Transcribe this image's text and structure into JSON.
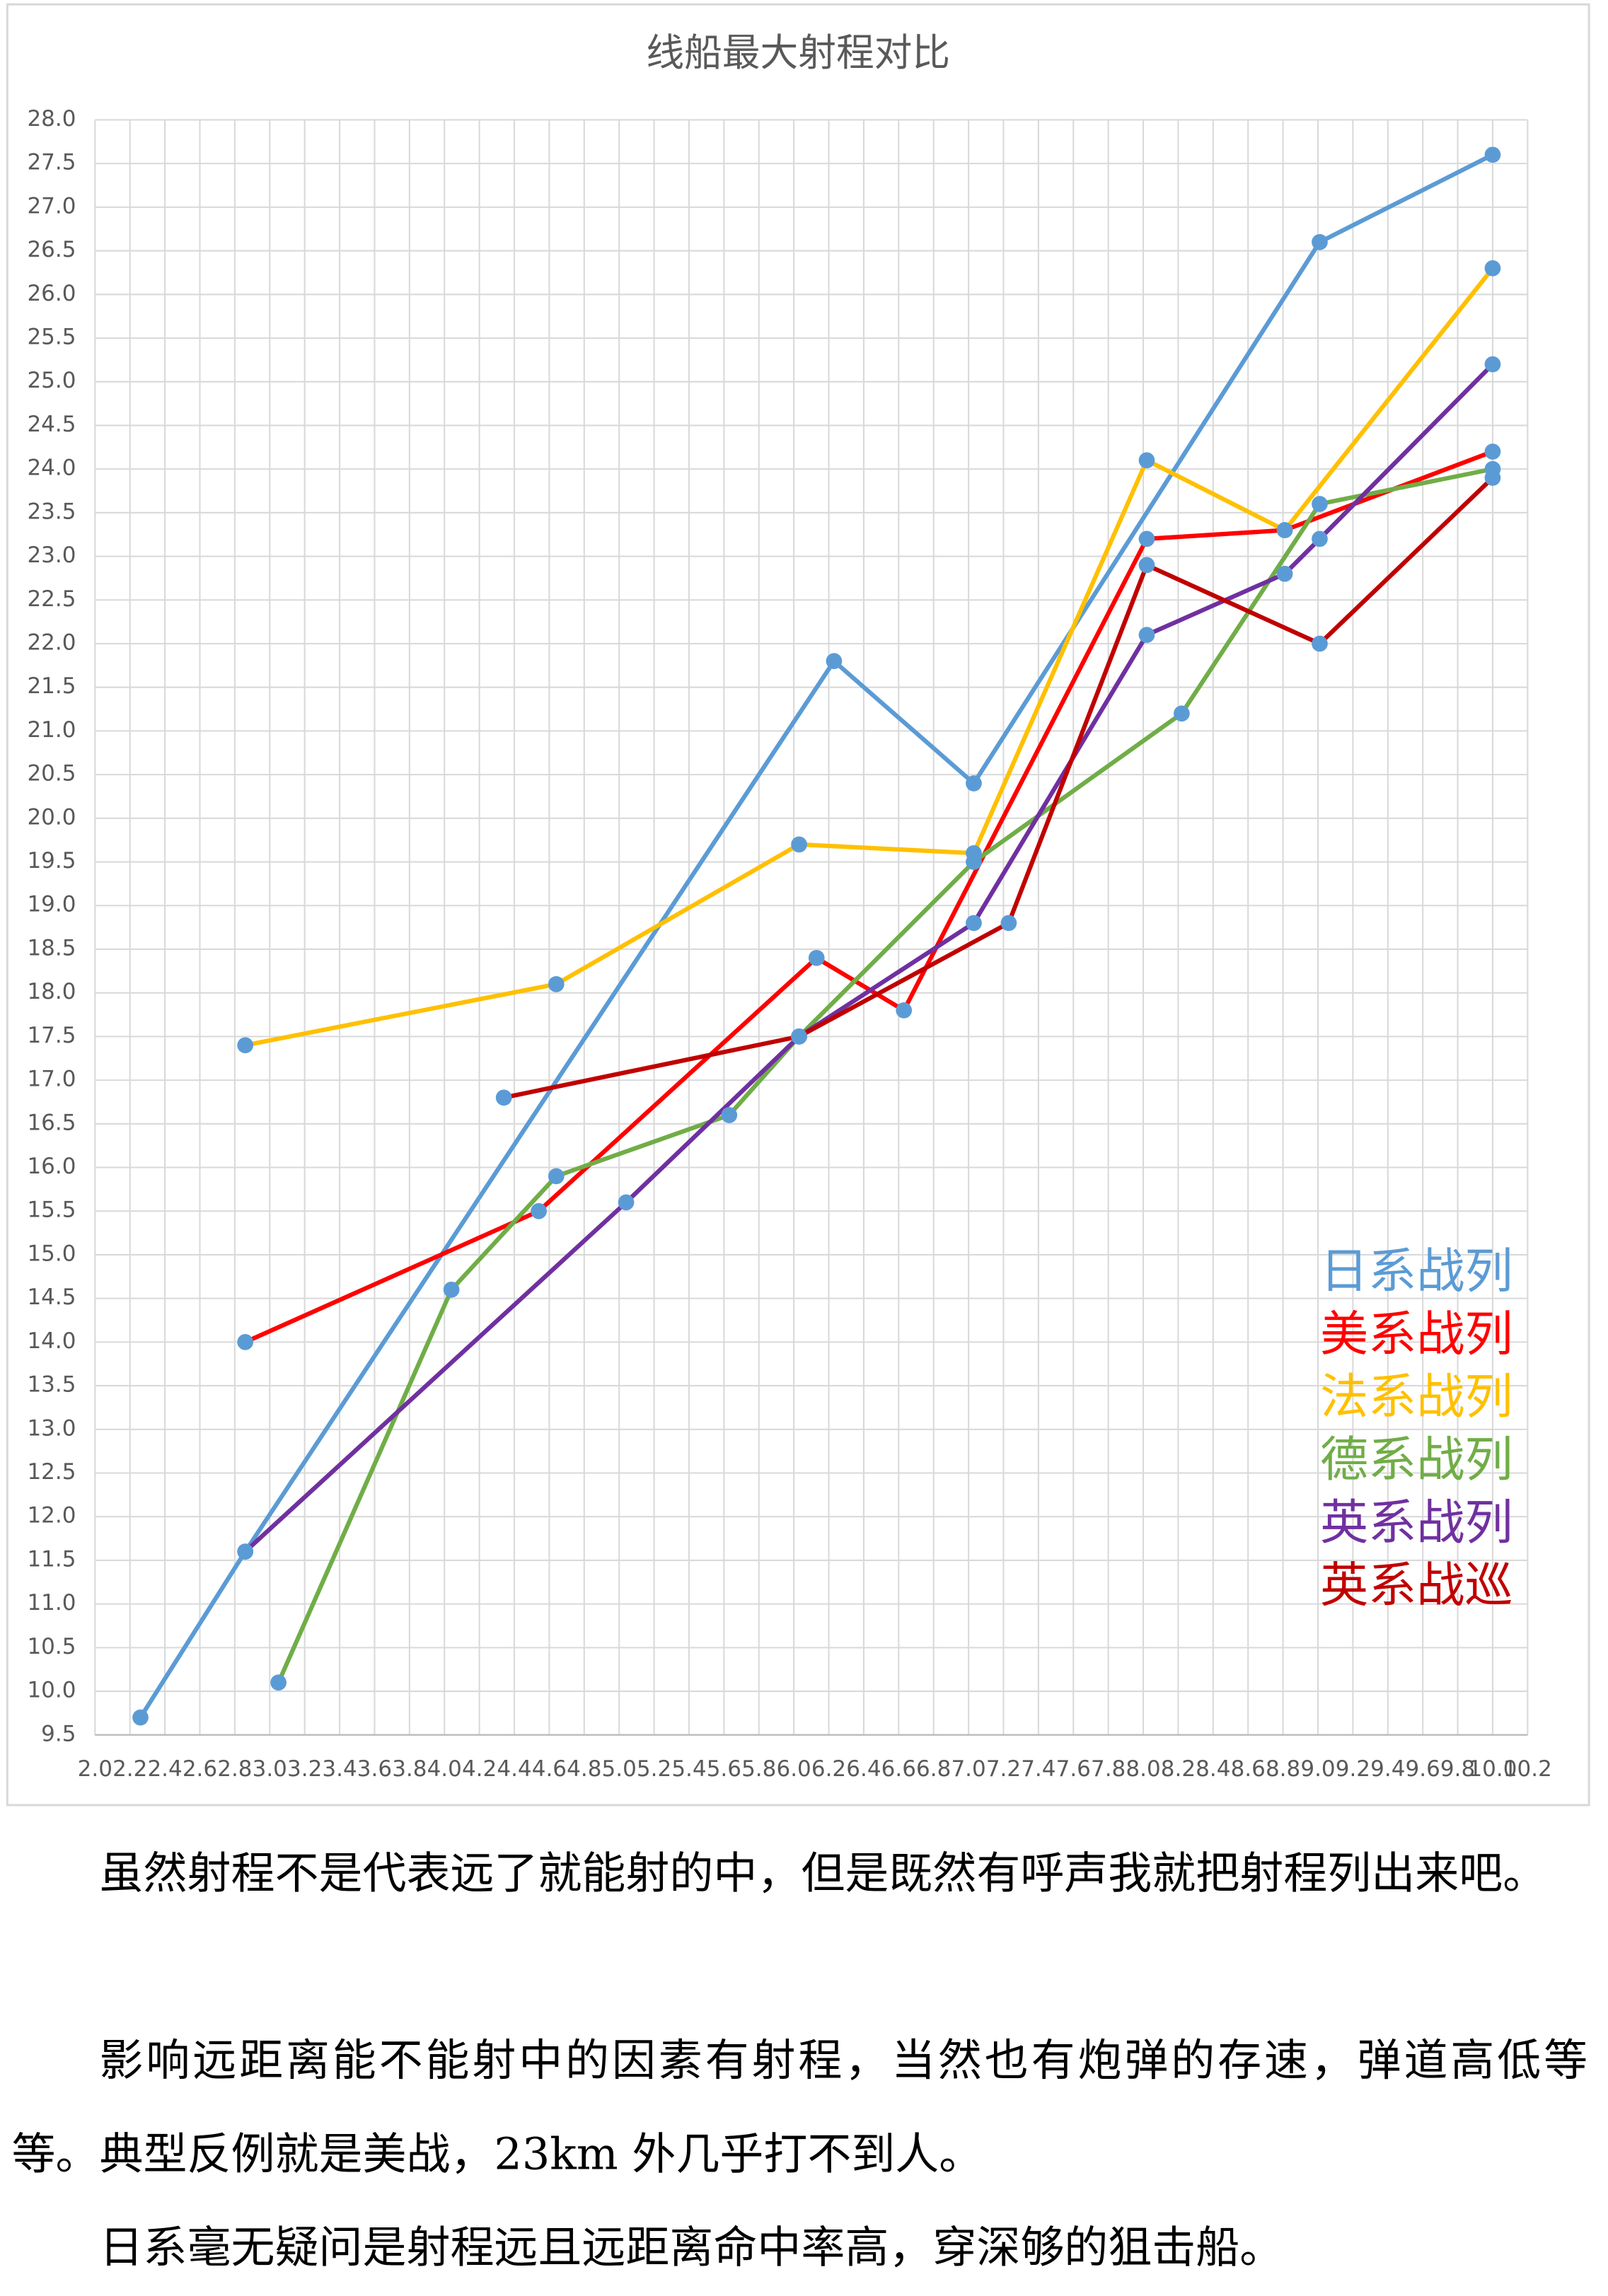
{
  "chart_data": {
    "type": "line",
    "title": "线船最大射程对比",
    "xlim": [
      2,
      10.2
    ],
    "ylim": [
      9.5,
      28
    ],
    "xticks": [
      {
        "value": 2,
        "label": "2.0"
      },
      2.2,
      2.4,
      2.6,
      2.8,
      {
        "value": 3,
        "label": "3.0"
      },
      3.2,
      3.4,
      3.6,
      3.8,
      {
        "value": 4,
        "label": "4.0"
      },
      4.2,
      4.4,
      4.6,
      4.8,
      {
        "value": 5,
        "label": "5.0"
      },
      5.2,
      5.4,
      5.6,
      5.8,
      {
        "value": 6,
        "label": "6.0"
      },
      6.2,
      6.4,
      6.6,
      6.8,
      {
        "value": 7,
        "label": "7.0"
      },
      7.2,
      7.4,
      7.6,
      7.8,
      {
        "value": 8,
        "label": "8.0"
      },
      8.2,
      8.4,
      8.6,
      8.8,
      {
        "value": 9,
        "label": "9.0"
      },
      9.2,
      9.4,
      9.6,
      9.8,
      {
        "value": 10,
        "label": "10.0"
      },
      10.2
    ],
    "yticks": [
      9.5,
      {
        "value": 10,
        "label": "10.0"
      },
      10.5,
      {
        "value": 11,
        "label": "11.0"
      },
      11.5,
      {
        "value": 12,
        "label": "12.0"
      },
      12.5,
      {
        "value": 13,
        "label": "13.0"
      },
      13.5,
      {
        "value": 14,
        "label": "14.0"
      },
      14.5,
      {
        "value": 15,
        "label": "15.0"
      },
      15.5,
      {
        "value": 16,
        "label": "16.0"
      },
      16.5,
      {
        "value": 17,
        "label": "17.0"
      },
      17.5,
      {
        "value": 18,
        "label": "18.0"
      },
      18.5,
      {
        "value": 19,
        "label": "19.0"
      },
      19.5,
      {
        "value": 20,
        "label": "20.0"
      },
      20.5,
      {
        "value": 21,
        "label": "21.0"
      },
      21.5,
      {
        "value": 22,
        "label": "22.0"
      },
      22.5,
      {
        "value": 23,
        "label": "23.0"
      },
      23.5,
      {
        "value": 24,
        "label": "24.0"
      },
      24.5,
      {
        "value": 25,
        "label": "25.0"
      },
      25.5,
      {
        "value": 26,
        "label": "26.0"
      },
      26.5,
      {
        "value": 27,
        "label": "27.0"
      },
      27.5,
      {
        "value": 28,
        "label": "28.0"
      }
    ],
    "grid": true,
    "legend": "right",
    "marker_color": "#5b9bd5",
    "series": [
      {
        "name": "日系战列",
        "color": "#5b9bd5",
        "x": [
          2.26,
          2.86,
          6.23,
          7.03,
          9.01,
          10.0
        ],
        "values": [
          9.7,
          11.6,
          21.8,
          20.4,
          26.6,
          27.6
        ]
      },
      {
        "name": "美系战列",
        "color": "#ff0000",
        "x": [
          2.86,
          4.54,
          6.13,
          6.63,
          8.02,
          8.81,
          10.0
        ],
        "values": [
          14.0,
          15.5,
          18.4,
          17.8,
          23.2,
          23.3,
          24.2
        ]
      },
      {
        "name": "法系战列",
        "color": "#ffc000",
        "x": [
          2.86,
          4.64,
          6.03,
          7.03,
          8.02,
          8.81,
          10.0
        ],
        "values": [
          17.4,
          18.1,
          19.7,
          19.6,
          24.1,
          23.3,
          26.3
        ]
      },
      {
        "name": "德系战列",
        "color": "#70ad47",
        "x": [
          3.05,
          4.04,
          4.64,
          5.63,
          6.03,
          7.03,
          8.22,
          9.01,
          10.0
        ],
        "values": [
          10.1,
          14.6,
          15.9,
          16.6,
          17.5,
          19.5,
          21.2,
          23.6,
          24.0
        ]
      },
      {
        "name": "英系战列",
        "color": "#7030a0",
        "x": [
          2.86,
          5.04,
          6.03,
          7.03,
          8.02,
          8.81,
          9.01,
          10.0
        ],
        "values": [
          11.6,
          15.6,
          17.5,
          18.8,
          22.1,
          22.8,
          23.2,
          25.2
        ]
      },
      {
        "name": "英系战巡",
        "color": "#c00000",
        "x": [
          4.34,
          6.03,
          7.23,
          8.02,
          9.01,
          10.0
        ],
        "values": [
          16.8,
          17.5,
          18.8,
          22.9,
          22.0,
          23.9
        ]
      }
    ]
  },
  "paragraphs": [
    "虽然射程不是代表远了就能射的中，但是既然有呼声我就把射程列出来吧。",
    "影响远距离能不能射中的因素有射程，当然也有炮弹的存速，弹道高低等等。典型反例就是美战，23km 外几乎打不到人。",
    "日系毫无疑问是射程远且远距离命中率高，穿深够的狙击船。"
  ]
}
